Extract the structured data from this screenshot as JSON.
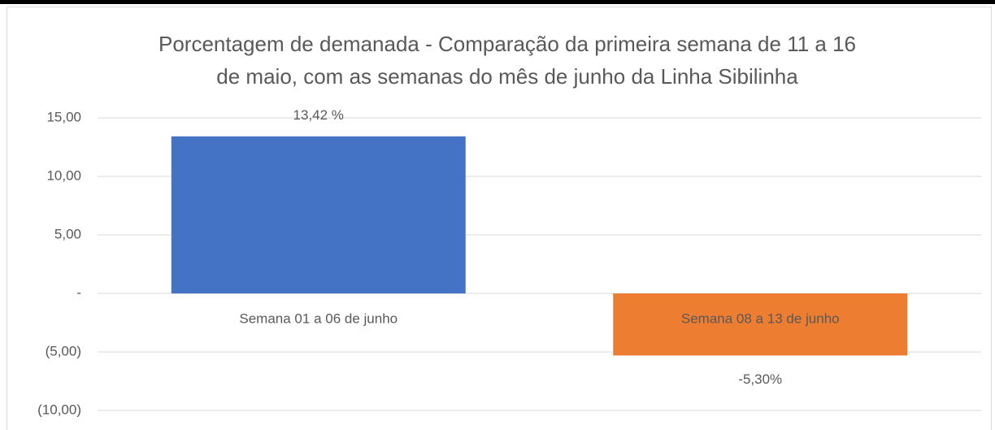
{
  "chart_data": {
    "type": "bar",
    "title": [
      "Porcentagem de demanada - Comparação da primeira semana de 11 a 16",
      "de maio, com as semanas do mês de junho da Linha Sibilinha"
    ],
    "categories": [
      "Semana 01 a 06 de junho",
      "Semana 08 a 13 de junho"
    ],
    "values": [
      13.42,
      -5.3
    ],
    "value_labels": [
      "13,42 %",
      "-5,30%"
    ],
    "colors": [
      "#4472c4",
      "#ed7d31"
    ],
    "ylim": [
      -10,
      15
    ],
    "yticks": [
      {
        "value": 15,
        "label": "15,00"
      },
      {
        "value": 10,
        "label": "10,00"
      },
      {
        "value": 5,
        "label": "5,00"
      },
      {
        "value": 0,
        "label": "-"
      },
      {
        "value": -5,
        "label": "(5,00)"
      },
      {
        "value": -10,
        "label": "(10,00)"
      }
    ],
    "grid": true
  }
}
